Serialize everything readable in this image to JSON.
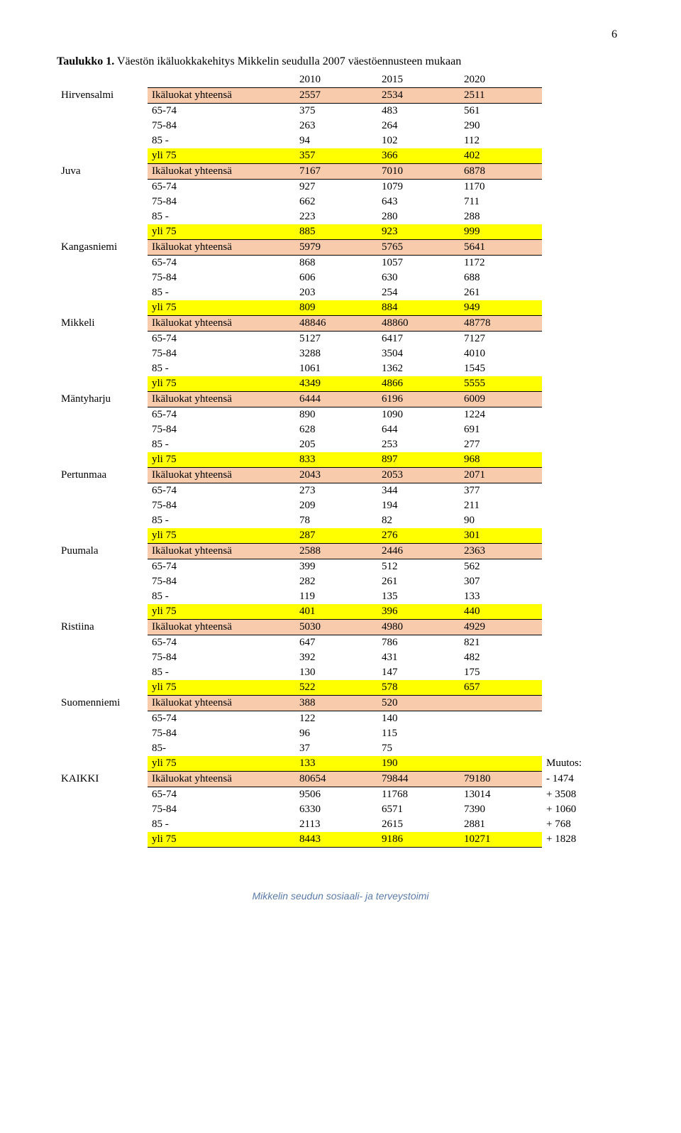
{
  "page_number": "6",
  "title_prefix": "Taulukko 1.",
  "title_rest": " Väestön ikäluokkakehitys Mikkelin seudulla 2007 väestöennusteen mukaan",
  "header_years": [
    "2010",
    "2015",
    "2020"
  ],
  "muutos_label": "Muutos:",
  "footer": "Mikkelin seudun sosiaali- ja terveystoimi",
  "colors": {
    "total_bg": "#f8cbad",
    "yli_bg": "#ffff00",
    "footer_color": "#5b7ba8"
  },
  "municipalities": [
    {
      "name": "Hirvensalmi",
      "rows": [
        {
          "type": "total",
          "label": "Ikäluokat yhteensä",
          "v": [
            "2557",
            "2534",
            "2511"
          ]
        },
        {
          "type": "plain",
          "label": "65-74",
          "v": [
            "375",
            "483",
            "561"
          ]
        },
        {
          "type": "plain",
          "label": "75-84",
          "v": [
            "263",
            "264",
            "290"
          ]
        },
        {
          "type": "plain",
          "label": "85 -",
          "v": [
            "94",
            "102",
            "112"
          ]
        },
        {
          "type": "yli",
          "label": "yli 75",
          "v": [
            "357",
            "366",
            "402"
          ]
        }
      ]
    },
    {
      "name": "Juva",
      "rows": [
        {
          "type": "total",
          "label": "Ikäluokat yhteensä",
          "v": [
            "7167",
            "7010",
            "6878"
          ]
        },
        {
          "type": "plain",
          "label": "65-74",
          "v": [
            "927",
            "1079",
            "1170"
          ]
        },
        {
          "type": "plain",
          "label": "75-84",
          "v": [
            "662",
            "643",
            "711"
          ]
        },
        {
          "type": "plain",
          "label": "85 -",
          "v": [
            "223",
            "280",
            "288"
          ]
        },
        {
          "type": "yli",
          "label": "yli 75",
          "v": [
            "885",
            "923",
            "999"
          ]
        }
      ]
    },
    {
      "name": "Kangasniemi",
      "rows": [
        {
          "type": "total",
          "label": "Ikäluokat yhteensä",
          "v": [
            "5979",
            "5765",
            "5641"
          ]
        },
        {
          "type": "plain",
          "label": "65-74",
          "v": [
            "868",
            "1057",
            "1172"
          ]
        },
        {
          "type": "plain",
          "label": "75-84",
          "v": [
            "606",
            "630",
            "688"
          ]
        },
        {
          "type": "plain",
          "label": "85 -",
          "v": [
            "203",
            "254",
            "261"
          ]
        },
        {
          "type": "yli",
          "label": "yli 75",
          "v": [
            "809",
            "884",
            "949"
          ]
        }
      ]
    },
    {
      "name": "Mikkeli",
      "rows": [
        {
          "type": "total",
          "label": "Ikäluokat yhteensä",
          "v": [
            "48846",
            "48860",
            "48778"
          ]
        },
        {
          "type": "plain",
          "label": "65-74",
          "v": [
            "5127",
            "6417",
            "7127"
          ]
        },
        {
          "type": "plain",
          "label": "75-84",
          "v": [
            "3288",
            "3504",
            "4010"
          ]
        },
        {
          "type": "plain",
          "label": "85 -",
          "v": [
            "1061",
            "1362",
            "1545"
          ]
        },
        {
          "type": "yli",
          "label": "yli 75",
          "v": [
            "4349",
            "4866",
            "5555"
          ]
        }
      ]
    },
    {
      "name": "Mäntyharju",
      "rows": [
        {
          "type": "total",
          "label": "Ikäluokat yhteensä",
          "v": [
            "6444",
            "6196",
            "6009"
          ]
        },
        {
          "type": "plain",
          "label": "65-74",
          "v": [
            "890",
            "1090",
            "1224"
          ]
        },
        {
          "type": "plain",
          "label": "75-84",
          "v": [
            "628",
            "644",
            "691"
          ]
        },
        {
          "type": "plain",
          "label": "85 -",
          "v": [
            "205",
            "253",
            "277"
          ]
        },
        {
          "type": "yli",
          "label": "yli 75",
          "v": [
            "833",
            "897",
            "968"
          ]
        }
      ]
    },
    {
      "name": "Pertunmaa",
      "rows": [
        {
          "type": "total",
          "label": "Ikäluokat yhteensä",
          "v": [
            "2043",
            "2053",
            "2071"
          ]
        },
        {
          "type": "plain",
          "label": "65-74",
          "v": [
            "273",
            "344",
            "377"
          ]
        },
        {
          "type": "plain",
          "label": "75-84",
          "v": [
            "209",
            "194",
            "211"
          ]
        },
        {
          "type": "plain",
          "label": "85 -",
          "v": [
            "78",
            "82",
            "90"
          ]
        },
        {
          "type": "yli",
          "label": "yli 75",
          "v": [
            "287",
            "276",
            "301"
          ]
        }
      ]
    },
    {
      "name": "Puumala",
      "rows": [
        {
          "type": "total",
          "label": "Ikäluokat yhteensä",
          "v": [
            "2588",
            "2446",
            "2363"
          ]
        },
        {
          "type": "plain",
          "label": "65-74",
          "v": [
            "399",
            "512",
            "562"
          ]
        },
        {
          "type": "plain",
          "label": "75-84",
          "v": [
            "282",
            "261",
            "307"
          ]
        },
        {
          "type": "plain",
          "label": "85 -",
          "v": [
            "119",
            "135",
            "133"
          ]
        },
        {
          "type": "yli",
          "label": "yli 75",
          "v": [
            "401",
            "396",
            "440"
          ]
        }
      ]
    },
    {
      "name": "Ristiina",
      "rows": [
        {
          "type": "total",
          "label": "Ikäluokat yhteensä",
          "v": [
            "5030",
            "4980",
            "4929"
          ]
        },
        {
          "type": "plain",
          "label": "65-74",
          "v": [
            "647",
            "786",
            "821"
          ]
        },
        {
          "type": "plain",
          "label": "75-84",
          "v": [
            "392",
            "431",
            "482"
          ]
        },
        {
          "type": "plain",
          "label": "85 -",
          "v": [
            "130",
            "147",
            "175"
          ]
        },
        {
          "type": "yli",
          "label": "yli 75",
          "v": [
            "522",
            "578",
            "657"
          ]
        }
      ]
    },
    {
      "name": "Suomenniemi",
      "two_cols": true,
      "rows": [
        {
          "type": "total",
          "label": "Ikäluokat yhteensä",
          "v": [
            "388",
            "520"
          ]
        },
        {
          "type": "plain",
          "label": "65-74",
          "v": [
            "122",
            "140"
          ]
        },
        {
          "type": "plain",
          "label": "75-84",
          "v": [
            "96",
            "115"
          ]
        },
        {
          "type": "plain",
          "label": "85-",
          "v": [
            "37",
            "75"
          ]
        },
        {
          "type": "yli",
          "label": "yli 75",
          "v": [
            "133",
            "190"
          ],
          "extra": "Muutos:"
        }
      ]
    },
    {
      "name": "KAIKKI",
      "rows": [
        {
          "type": "total",
          "label": "Ikäluokat yhteensä",
          "v": [
            "80654",
            "79844",
            "79180"
          ],
          "extra": "- 1474"
        },
        {
          "type": "plain",
          "label": "65-74",
          "v": [
            "9506",
            "11768",
            "13014"
          ],
          "extra": "+ 3508"
        },
        {
          "type": "plain",
          "label": "75-84",
          "v": [
            "6330",
            "6571",
            "7390"
          ],
          "extra": "+ 1060"
        },
        {
          "type": "plain",
          "label": "85 -",
          "v": [
            "2113",
            "2615",
            "2881"
          ],
          "extra": "+ 768"
        },
        {
          "type": "yli",
          "label": "yli 75",
          "v": [
            "8443",
            "9186",
            "10271"
          ],
          "extra": "+ 1828"
        }
      ]
    }
  ]
}
